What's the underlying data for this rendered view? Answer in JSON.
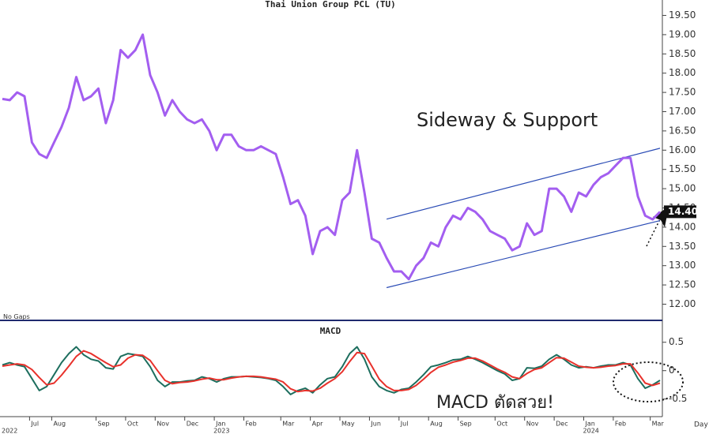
{
  "chart_data": [
    {
      "type": "line",
      "title": "Thai Union Group PCL (TU)",
      "color": "#a35ef0",
      "values": [
        17.33,
        17.3,
        17.5,
        17.4,
        16.2,
        15.9,
        15.8,
        16.2,
        16.6,
        17.1,
        17.9,
        17.3,
        17.4,
        17.6,
        16.7,
        17.3,
        18.6,
        18.4,
        18.6,
        19.0,
        17.95,
        17.5,
        16.9,
        17.3,
        17.0,
        16.8,
        16.7,
        16.8,
        16.5,
        16.0,
        16.4,
        16.4,
        16.1,
        16.0,
        16.0,
        16.1,
        16.0,
        15.9,
        15.3,
        14.6,
        14.7,
        14.3,
        13.3,
        13.9,
        14.0,
        13.8,
        14.7,
        14.9,
        16.0,
        14.9,
        13.7,
        13.6,
        13.2,
        12.85,
        12.85,
        12.65,
        13.0,
        13.2,
        13.6,
        13.5,
        14.0,
        14.3,
        14.2,
        14.5,
        14.4,
        14.2,
        13.9,
        13.8,
        13.7,
        13.4,
        13.5,
        14.1,
        13.8,
        13.9,
        15.0,
        15.0,
        14.8,
        14.4,
        14.9,
        14.8,
        15.1,
        15.3,
        15.4,
        15.6,
        15.8,
        15.8,
        14.8,
        14.3,
        14.2,
        14.4
      ],
      "last_value_label": "14.40",
      "ylim": [
        11.6,
        19.9
      ],
      "yticks": [
        {
          "value": 12,
          "label": "12.00"
        },
        {
          "value": 12.5,
          "label": "12.50"
        },
        {
          "value": 13,
          "label": "13.00"
        },
        {
          "value": 13.5,
          "label": "13.50"
        },
        {
          "value": 14,
          "label": "14.00"
        },
        {
          "value": 14.5,
          "label": "14.50"
        },
        {
          "value": 15,
          "label": "15.00"
        },
        {
          "value": 15.5,
          "label": "15.50"
        },
        {
          "value": 16,
          "label": "16.00"
        },
        {
          "value": 16.5,
          "label": "16.50"
        },
        {
          "value": 17,
          "label": "17.00"
        },
        {
          "value": 17.5,
          "label": "17.50"
        },
        {
          "value": 18,
          "label": "18.00"
        },
        {
          "value": 18.5,
          "label": "18.50"
        },
        {
          "value": 19,
          "label": "19.00"
        },
        {
          "value": 19.5,
          "label": "19.50"
        }
      ],
      "trendlines": [
        {
          "color": "#2a4bb5",
          "x": [
            52,
            89
          ],
          "values": [
            14.21,
            16.05
          ]
        },
        {
          "color": "#2a4bb5",
          "x": [
            52,
            89
          ],
          "values": [
            12.43,
            14.17
          ]
        }
      ],
      "annotation": "Sideway & Support",
      "note": "No Gaps"
    },
    {
      "type": "line",
      "title": "MACD",
      "series": [
        {
          "color": "#1d6e5e",
          "values": [
            0.1,
            0.14,
            0.1,
            0.07,
            -0.14,
            -0.35,
            -0.28,
            -0.07,
            0.14,
            0.3,
            0.42,
            0.28,
            0.2,
            0.17,
            0.05,
            0.03,
            0.25,
            0.3,
            0.28,
            0.25,
            0.07,
            -0.17,
            -0.28,
            -0.2,
            -0.2,
            -0.18,
            -0.17,
            -0.11,
            -0.14,
            -0.2,
            -0.14,
            -0.11,
            -0.11,
            -0.1,
            -0.11,
            -0.12,
            -0.14,
            -0.17,
            -0.28,
            -0.42,
            -0.35,
            -0.31,
            -0.39,
            -0.25,
            -0.14,
            -0.11,
            0.07,
            0.3,
            0.42,
            0.2,
            -0.11,
            -0.28,
            -0.35,
            -0.39,
            -0.33,
            -0.31,
            -0.2,
            -0.07,
            0.07,
            0.1,
            0.14,
            0.19,
            0.2,
            0.25,
            0.2,
            0.14,
            0.07,
            0,
            -0.06,
            -0.17,
            -0.14,
            0.05,
            0.04,
            0.08,
            0.2,
            0.28,
            0.2,
            0.1,
            0.05,
            0.07,
            0.05,
            0.08,
            0.1,
            0.1,
            0.14,
            0.1,
            -0.14,
            -0.31,
            -0.25,
            -0.17
          ]
        },
        {
          "color": "#e8312b",
          "values": [
            0.08,
            0.1,
            0.12,
            0.1,
            0.02,
            -0.12,
            -0.25,
            -0.22,
            -0.08,
            0.08,
            0.25,
            0.35,
            0.3,
            0.22,
            0.14,
            0.07,
            0.1,
            0.22,
            0.28,
            0.27,
            0.18,
            0.0,
            -0.17,
            -0.23,
            -0.21,
            -0.2,
            -0.18,
            -0.15,
            -0.13,
            -0.16,
            -0.16,
            -0.13,
            -0.11,
            -0.1,
            -0.1,
            -0.11,
            -0.13,
            -0.15,
            -0.2,
            -0.32,
            -0.37,
            -0.35,
            -0.36,
            -0.31,
            -0.22,
            -0.14,
            -0.02,
            0.16,
            0.32,
            0.3,
            0.08,
            -0.15,
            -0.28,
            -0.35,
            -0.35,
            -0.33,
            -0.26,
            -0.15,
            -0.03,
            0.06,
            0.1,
            0.15,
            0.18,
            0.22,
            0.22,
            0.17,
            0.1,
            0.03,
            -0.03,
            -0.11,
            -0.14,
            -0.05,
            0.02,
            0.05,
            0.14,
            0.23,
            0.22,
            0.15,
            0.08,
            0.06,
            0.05,
            0.06,
            0.08,
            0.09,
            0.12,
            0.12,
            -0.04,
            -0.22,
            -0.26,
            -0.22
          ]
        }
      ],
      "categories": [
        null,
        null,
        null,
        null,
        "Jul",
        null,
        null,
        "Aug",
        null,
        null,
        null,
        null,
        null,
        "Sep",
        null,
        null,
        null,
        "Oct",
        null,
        null,
        null,
        "Nov",
        null,
        null,
        null,
        "Dec",
        null,
        null,
        null,
        "Jan",
        null,
        null,
        null,
        "Feb",
        null,
        null,
        null,
        null,
        "Mar",
        null,
        null,
        null,
        "Apr",
        null,
        null,
        null,
        "May",
        null,
        null,
        null,
        "Jun",
        null,
        null,
        null,
        "Jul",
        null,
        null,
        null,
        "Aug",
        null,
        null,
        null,
        "Sep",
        null,
        null,
        null,
        null,
        "Oct",
        null,
        null,
        null,
        "Nov",
        null,
        null,
        null,
        "Dec",
        null,
        null,
        null,
        "Jan",
        null,
        null,
        null,
        "Feb",
        null,
        null,
        null,
        null,
        "Mar",
        null
      ],
      "years": [
        "2022",
        null,
        null,
        null,
        null,
        null,
        null,
        null,
        null,
        null,
        null,
        null,
        null,
        null,
        null,
        null,
        null,
        null,
        null,
        null,
        null,
        null,
        null,
        null,
        null,
        null,
        null,
        null,
        null,
        "2023",
        null,
        null,
        null,
        null,
        null,
        null,
        null,
        null,
        null,
        null,
        null,
        null,
        null,
        null,
        null,
        null,
        null,
        null,
        null,
        null,
        null,
        null,
        null,
        null,
        null,
        null,
        null,
        null,
        null,
        null,
        null,
        null,
        null,
        null,
        null,
        null,
        null,
        null,
        null,
        null,
        null,
        null,
        null,
        null,
        null,
        null,
        null,
        null,
        null,
        "2024",
        null,
        null,
        null,
        null,
        null,
        null,
        null,
        null,
        null,
        null
      ],
      "ylim": [
        -0.81,
        0.83
      ],
      "yticks": [
        0.5,
        0,
        -0.5
      ],
      "annotation": "MACD ตัดสวย!",
      "x_label": "Day"
    }
  ]
}
